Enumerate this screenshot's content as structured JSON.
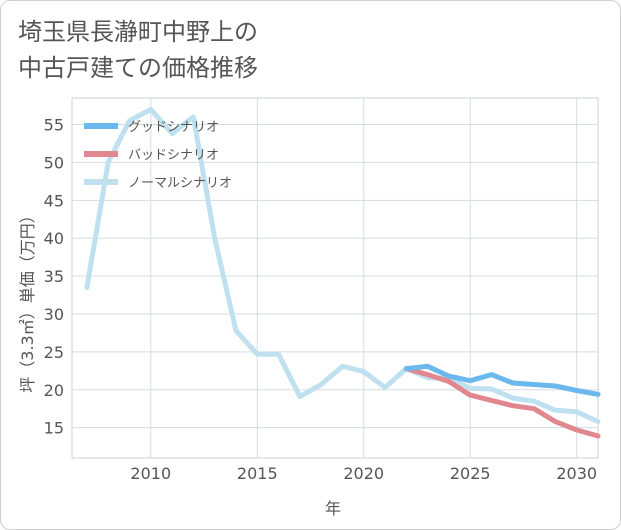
{
  "chart_data": {
    "type": "line",
    "title_lines": [
      "埼玉県長瀞町中野上の",
      "中古戸建ての価格推移"
    ],
    "xlabel": "年",
    "ylabel": "坪（3.3㎡）単価（万円）",
    "xlim": [
      2006.3,
      2031
    ],
    "ylim": [
      11,
      58.5
    ],
    "xticks": [
      2010,
      2015,
      2020,
      2025,
      2030
    ],
    "yticks": [
      15,
      20,
      25,
      30,
      35,
      40,
      45,
      50,
      55
    ],
    "grid": true,
    "legend_position": "top-left",
    "series": [
      {
        "name": "グッドシナリオ",
        "color": "#6ab8ee",
        "x": [
          2022,
          2023,
          2024,
          2025,
          2026,
          2027,
          2028,
          2029,
          2030,
          2031
        ],
        "y": [
          22.8,
          23.1,
          21.8,
          21.2,
          22.0,
          20.9,
          20.7,
          20.5,
          19.9,
          19.4
        ]
      },
      {
        "name": "バッドシナリオ",
        "color": "#e0878f",
        "x": [
          2022,
          2023,
          2024,
          2025,
          2026,
          2027,
          2028,
          2029,
          2030,
          2031
        ],
        "y": [
          22.8,
          22.0,
          21.1,
          19.3,
          18.6,
          17.9,
          17.5,
          15.8,
          14.7,
          13.9
        ]
      },
      {
        "name": "ノーマルシナリオ",
        "color": "#bfe0ee",
        "x": [
          2007,
          2008,
          2009,
          2010,
          2011,
          2012,
          2013,
          2014,
          2015,
          2016,
          2017,
          2018,
          2019,
          2020,
          2021,
          2022,
          2023,
          2024,
          2025,
          2026,
          2027,
          2028,
          2029,
          2030,
          2031
        ],
        "y": [
          33.5,
          50.0,
          55.5,
          57.0,
          53.8,
          56.0,
          40.0,
          27.8,
          24.7,
          24.7,
          19.1,
          20.7,
          23.1,
          22.4,
          20.3,
          22.8,
          21.6,
          21.5,
          20.2,
          20.1,
          18.9,
          18.5,
          17.3,
          17.1,
          15.8
        ]
      }
    ]
  }
}
